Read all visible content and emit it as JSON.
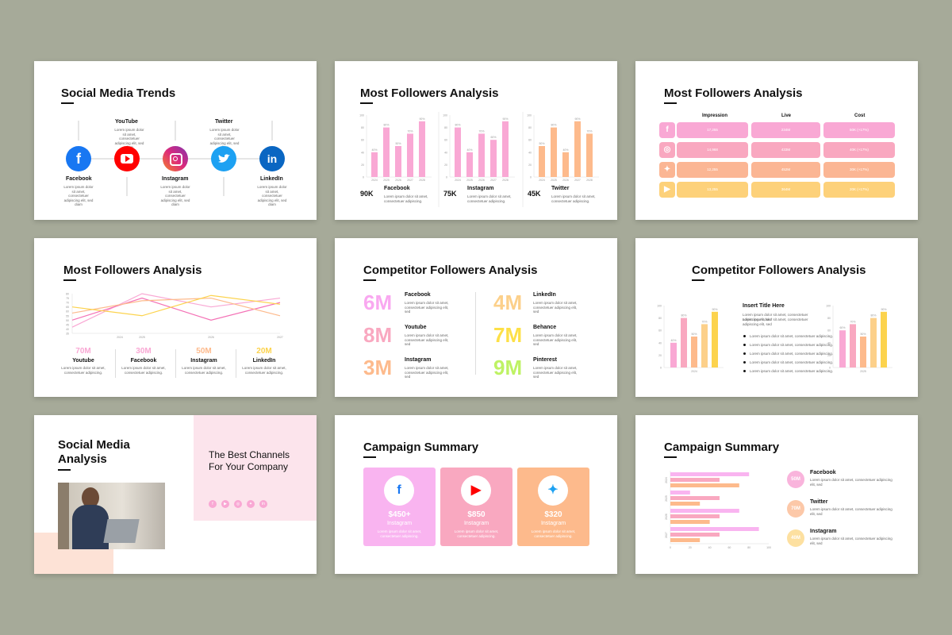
{
  "colors": {
    "background": "#a6aa99",
    "pink": "#f9a8d4",
    "rose": "#f472b6",
    "peach": "#fdba8c",
    "yellow": "#fcd34d",
    "facebook": "#1877f2",
    "youtube": "#ff0000",
    "twitter": "#1da1f2",
    "linkedin": "#0a66c2"
  },
  "lorem_short": "Lorem ipsum dolor sit amet, consectetuer adipiscing elit, sed diam",
  "lorem_two": "Lorem ipsum dolor sit amet, consectetuer adipiscing.",
  "lorem_long": "Lorem ipsum dolor sit amet, consectetuer adipiscing elit, sed",
  "slide1": {
    "title": "Social Media Trends",
    "top_labels": [
      "YouTube",
      "Twitter"
    ],
    "bottom_labels": [
      "Facebook",
      "Instagram",
      "LinkedIn"
    ],
    "icons": [
      "facebook-icon",
      "youtube-icon",
      "instagram-icon",
      "twitter-icon",
      "linkedin-icon"
    ]
  },
  "slide2": {
    "title": "Most Followers Analysis",
    "charts": [
      {
        "stat": "90K",
        "name": "Facebook",
        "color": "#f9a8d4",
        "values": [
          40,
          80,
          50,
          70,
          90
        ]
      },
      {
        "stat": "75K",
        "name": "Instagram",
        "color": "#f9a8d4",
        "values": [
          80,
          40,
          70,
          60,
          90
        ]
      },
      {
        "stat": "45K",
        "name": "Twitter",
        "color": "#fdba8c",
        "values": [
          50,
          80,
          40,
          90,
          70
        ]
      }
    ],
    "years": [
      "2024",
      "2025",
      "2026",
      "2027",
      "2028"
    ],
    "yticks": [
      "100",
      "80",
      "60",
      "40",
      "20",
      "0"
    ]
  },
  "slide3": {
    "title": "Most Followers Analysis",
    "headers": [
      "Impression",
      "Live",
      "Cost"
    ],
    "rows": [
      {
        "icon": "facebook-icon",
        "color": "#f9a8d4",
        "cells": [
          "17,255",
          "234M",
          "50K (+17%)"
        ]
      },
      {
        "icon": "instagram-icon",
        "color": "#f9a8c0",
        "cells": [
          "14,968",
          "433M",
          "40K (+17%)"
        ]
      },
      {
        "icon": "twitter-icon",
        "color": "#fbb694",
        "cells": [
          "12,255",
          "452M",
          "30K (+17%)"
        ]
      },
      {
        "icon": "youtube-icon",
        "color": "#fdd17a",
        "cells": [
          "13,255",
          "364M",
          "20K (+17%)"
        ]
      }
    ]
  },
  "slide4": {
    "title": "Most Followers Analysis",
    "years": [
      "2024",
      "2025",
      "2026",
      "2027"
    ],
    "yticks": [
      "80",
      "75",
      "70",
      "65",
      "60",
      "55",
      "50",
      "45",
      "40",
      "35"
    ],
    "stats": [
      {
        "value": "70M",
        "name": "Youtube",
        "color": "#f9a8d4"
      },
      {
        "value": "30M",
        "name": "Facebook",
        "color": "#f9a8d4"
      },
      {
        "value": "50M",
        "name": "Instagram",
        "color": "#fdba8c"
      },
      {
        "value": "20M",
        "name": "LinkedIn",
        "color": "#fcd34d"
      }
    ]
  },
  "slide5": {
    "title": "Competitor Followers Analysis",
    "left": [
      {
        "value": "6M",
        "name": "Facebook",
        "color": "#f9a8f0"
      },
      {
        "value": "8M",
        "name": "Youtube",
        "color": "#f9a8c0"
      },
      {
        "value": "3M",
        "name": "Instagram",
        "color": "#fdba8c"
      }
    ],
    "right": [
      {
        "value": "4M",
        "name": "LinkedIn",
        "color": "#fcd08a"
      },
      {
        "value": "7M",
        "name": "Behance",
        "color": "#fde047"
      },
      {
        "value": "9M",
        "name": "Pinterest",
        "color": "#bef264"
      }
    ]
  },
  "slide6": {
    "title": "Competitor Followers Analysis",
    "insert_title": "Insert Title Here",
    "year_left": "2024",
    "year_right": "2025",
    "left_values": [
      40,
      80,
      50,
      70,
      90
    ],
    "right_values": [
      60,
      70,
      50,
      80,
      90
    ],
    "yticks": [
      "100",
      "80",
      "60",
      "40",
      "20",
      "0"
    ]
  },
  "slide7": {
    "title_line1": "Social Media",
    "title_line2": "Analysis",
    "tagline_line1": "The Best Channels",
    "tagline_line2": "For Your Company",
    "social_icons": [
      "facebook-icon",
      "youtube-icon",
      "instagram-icon",
      "twitter-icon",
      "linkedin-icon"
    ]
  },
  "slide8": {
    "title": "Campaign Summary",
    "cards": [
      {
        "value": "$450+",
        "name": "Instagram",
        "icon": "facebook-icon",
        "color": "#f9b4f0"
      },
      {
        "value": "$850",
        "name": "Instagram",
        "icon": "youtube-icon",
        "color": "#f9a8c0"
      },
      {
        "value": "$320",
        "name": "Instagram",
        "icon": "twitter-icon",
        "color": "#fdba8c"
      }
    ]
  },
  "slide9": {
    "title": "Campaign Summary",
    "years": [
      "2024",
      "2025",
      "2026",
      "2027"
    ],
    "xticks": [
      "0",
      "20",
      "40",
      "60",
      "80",
      "100"
    ],
    "bars": [
      [
        80,
        50,
        70
      ],
      [
        20,
        50,
        30
      ],
      [
        70,
        50,
        40
      ],
      [
        90,
        50,
        30
      ]
    ],
    "items": [
      {
        "value": "50M",
        "name": "Facebook",
        "color": "#f9b4dc"
      },
      {
        "value": "70M",
        "name": "Twitter",
        "color": "#fcc8a8"
      },
      {
        "value": "40M",
        "name": "Instagram",
        "color": "#fde0a0"
      }
    ]
  }
}
